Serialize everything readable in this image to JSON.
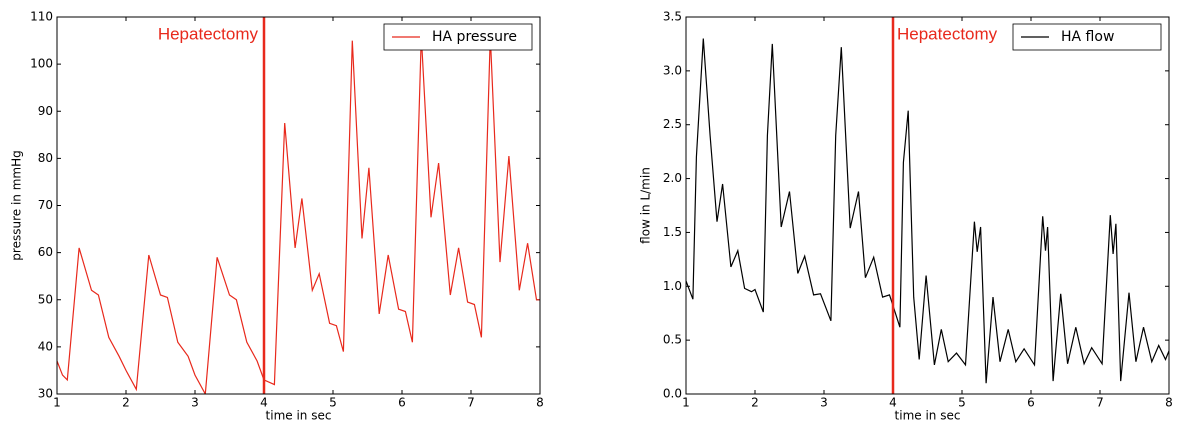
{
  "chart_data": [
    {
      "type": "line",
      "xlabel": "time in sec",
      "ylabel": "pressure in mmHg",
      "xlim": [
        1,
        8
      ],
      "ylim": [
        30,
        110
      ],
      "xticks": [
        1,
        2,
        3,
        4,
        5,
        6,
        7,
        8
      ],
      "yticks": [
        30,
        40,
        50,
        60,
        70,
        80,
        90,
        100,
        110
      ],
      "legend": "upper right",
      "annotation": {
        "text": "Hepatectomy",
        "x": 4,
        "color": "#e8291c"
      },
      "x": [
        1.0,
        1.08,
        1.15,
        1.32,
        1.5,
        1.6,
        1.75,
        1.9,
        2.0,
        2.15,
        2.33,
        2.5,
        2.6,
        2.75,
        2.9,
        3.0,
        3.15,
        3.32,
        3.5,
        3.6,
        3.75,
        3.9,
        4.0,
        4.15,
        4.3,
        4.45,
        4.55,
        4.7,
        4.8,
        4.95,
        5.05,
        5.15,
        5.28,
        5.42,
        5.52,
        5.67,
        5.8,
        5.95,
        6.05,
        6.15,
        6.28,
        6.42,
        6.53,
        6.7,
        6.82,
        6.95,
        7.05,
        7.15,
        7.28,
        7.42,
        7.55,
        7.7,
        7.82,
        7.95,
        8.0
      ],
      "series": [
        {
          "name": "HA pressure",
          "color": "#e8291c",
          "values": [
            37,
            34,
            33,
            61,
            52,
            51,
            42,
            38,
            35,
            31,
            59.5,
            51,
            50.5,
            41,
            38,
            34,
            30,
            59,
            51,
            50,
            41,
            37,
            33,
            32,
            87.5,
            61,
            71.5,
            52,
            55.5,
            45,
            44.5,
            39,
            105,
            63,
            78,
            47,
            59.5,
            48,
            47.5,
            41,
            106,
            67.5,
            79,
            51,
            61,
            49.5,
            49,
            42,
            106,
            58,
            80.5,
            52,
            62,
            50,
            50
          ]
        }
      ]
    },
    {
      "type": "line",
      "xlabel": "time in sec",
      "ylabel": "flow in L/min",
      "xlim": [
        1,
        8
      ],
      "ylim": [
        0,
        3.5
      ],
      "xticks": [
        1,
        2,
        3,
        4,
        5,
        6,
        7,
        8
      ],
      "yticks": [
        {
          "value": 0,
          "label": "0.0"
        },
        0.5,
        {
          "value": 1,
          "label": "1.0"
        },
        1.5,
        {
          "value": 2,
          "label": "2.0"
        },
        2.5,
        {
          "value": 3,
          "label": "3.0"
        },
        3.5
      ],
      "legend": "upper right",
      "annotation": {
        "text": "Hepatectomy",
        "x": 4,
        "color": "#e8291c"
      },
      "x": [
        1.0,
        1.1,
        1.15,
        1.25,
        1.35,
        1.45,
        1.53,
        1.65,
        1.75,
        1.85,
        1.95,
        2.0,
        2.12,
        2.18,
        2.25,
        2.38,
        2.5,
        2.62,
        2.72,
        2.85,
        2.95,
        3.1,
        3.17,
        3.25,
        3.38,
        3.5,
        3.6,
        3.72,
        3.85,
        3.95,
        4.1,
        4.15,
        4.22,
        4.3,
        4.38,
        4.48,
        4.6,
        4.7,
        4.8,
        4.92,
        5.05,
        5.18,
        5.22,
        5.27,
        5.35,
        5.45,
        5.55,
        5.67,
        5.78,
        5.9,
        6.05,
        6.17,
        6.21,
        6.24,
        6.32,
        6.43,
        6.53,
        6.65,
        6.77,
        6.88,
        7.03,
        7.15,
        7.19,
        7.23,
        7.3,
        7.42,
        7.52,
        7.63,
        7.75,
        7.85,
        7.95,
        8.0
      ],
      "series": [
        {
          "name": "HA flow",
          "color": "#000000",
          "values": [
            1.05,
            0.88,
            2.2,
            3.3,
            2.4,
            1.6,
            1.95,
            1.18,
            1.33,
            0.98,
            0.95,
            0.97,
            0.76,
            2.4,
            3.25,
            1.55,
            1.88,
            1.12,
            1.28,
            0.92,
            0.93,
            0.68,
            2.4,
            3.22,
            1.54,
            1.88,
            1.08,
            1.27,
            0.9,
            0.92,
            0.62,
            2.15,
            2.63,
            0.9,
            0.32,
            1.1,
            0.27,
            0.6,
            0.3,
            0.38,
            0.27,
            1.6,
            1.32,
            1.55,
            0.1,
            0.9,
            0.3,
            0.6,
            0.3,
            0.42,
            0.27,
            1.65,
            1.33,
            1.55,
            0.12,
            0.93,
            0.28,
            0.62,
            0.28,
            0.43,
            0.28,
            1.66,
            1.3,
            1.58,
            0.12,
            0.94,
            0.3,
            0.62,
            0.3,
            0.45,
            0.32,
            0.4
          ]
        }
      ]
    }
  ]
}
